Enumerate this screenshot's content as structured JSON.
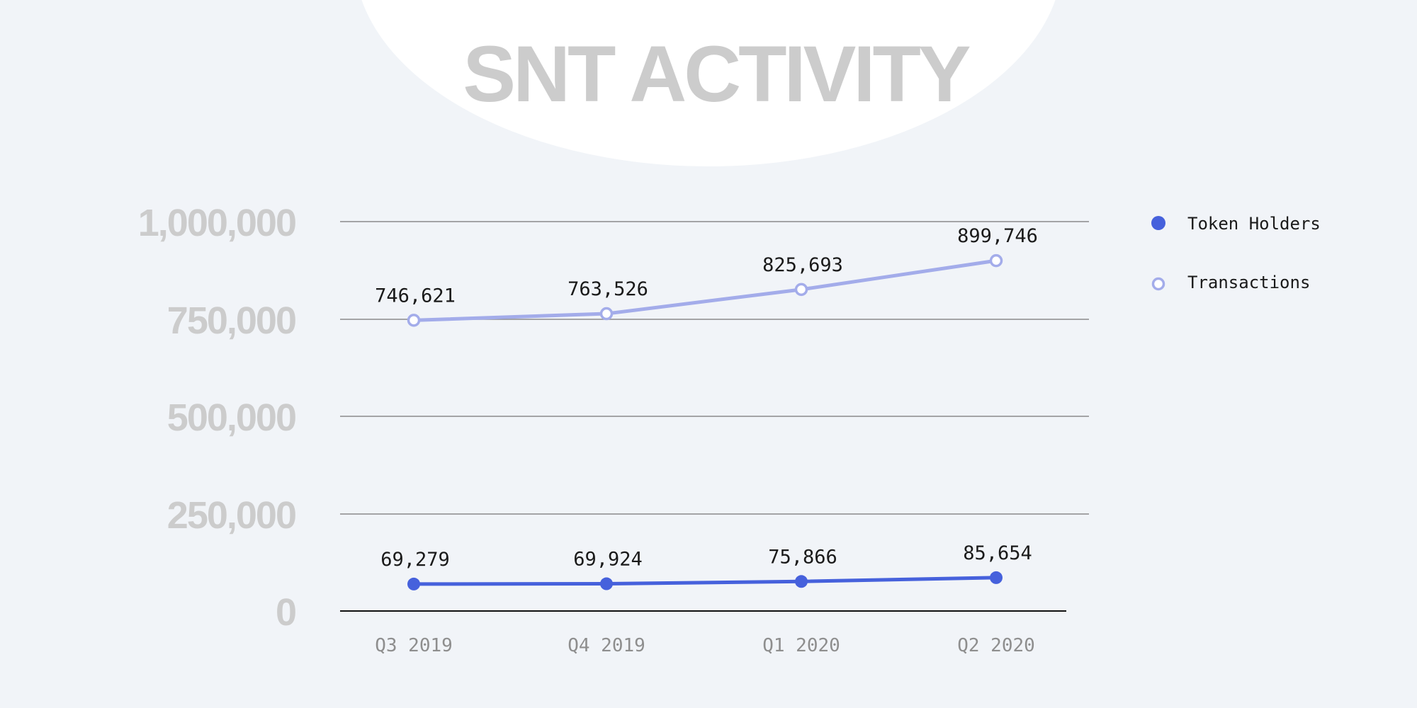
{
  "colors": {
    "background": "#f1f4f8",
    "token_holders": "#4661dc",
    "transactions": "#a3acea",
    "grid": "#8a8a8a",
    "muted_text": "#cccccc"
  },
  "chart_data": {
    "type": "line",
    "title": "SNT ACTIVITY",
    "categories": [
      "Q3 2019",
      "Q4 2019",
      "Q1 2020",
      "Q2 2020"
    ],
    "yticks": [
      {
        "value": 0,
        "label": "0"
      },
      {
        "value": 250000,
        "label": "250,000"
      },
      {
        "value": 500000,
        "label": "500,000"
      },
      {
        "value": 750000,
        "label": "750,000"
      },
      {
        "value": 1000000,
        "label": "1,000,000"
      }
    ],
    "ylim": [
      0,
      1000000
    ],
    "grid": true,
    "legend_position": "top-right",
    "series": [
      {
        "name": "Token Holders",
        "marker": "filled-circle",
        "values": [
          69279,
          69924,
          75866,
          85654
        ],
        "labels": [
          "69,279",
          "69,924",
          "75,866",
          "85,654"
        ]
      },
      {
        "name": "Transactions",
        "marker": "hollow-circle",
        "values": [
          746621,
          763526,
          825693,
          899746
        ],
        "labels": [
          "746,621",
          "763,526",
          "825,693",
          "899,746"
        ]
      }
    ]
  }
}
